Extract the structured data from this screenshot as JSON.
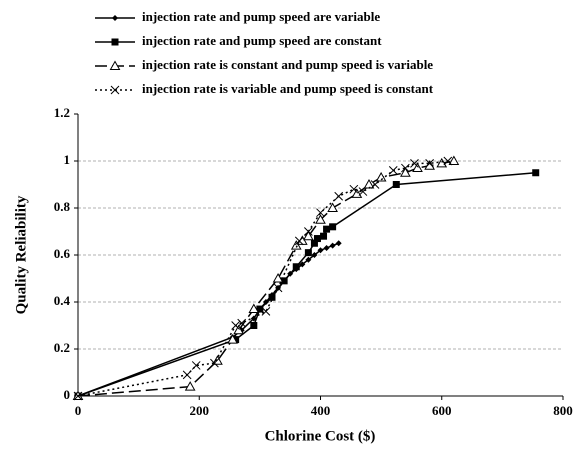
{
  "chart_data": {
    "type": "line",
    "xlabel": "Chlorine Cost ($)",
    "ylabel": "Quality Reliability",
    "xlim": [
      0,
      800
    ],
    "xticks": [
      0,
      200,
      400,
      600,
      800
    ],
    "ylim": [
      0,
      1.2
    ],
    "yticks": [
      0,
      0.2,
      0.4,
      0.6,
      0.8,
      1,
      1.2
    ],
    "grid": true,
    "legend": "top",
    "series": [
      {
        "name": "injection rate and pump speed are variable",
        "color": "#000000",
        "line_style": "solid",
        "marker": "diamond",
        "x": [
          0,
          255,
          270,
          290,
          300,
          310,
          320,
          330,
          340,
          350,
          360,
          370,
          380,
          390,
          400,
          410,
          420,
          430
        ],
        "values": [
          0,
          0.25,
          0.28,
          0.33,
          0.37,
          0.4,
          0.43,
          0.46,
          0.49,
          0.52,
          0.54,
          0.56,
          0.58,
          0.6,
          0.62,
          0.63,
          0.64,
          0.65
        ]
      },
      {
        "name": "injection rate and pump speed are constant",
        "color": "#000000",
        "line_style": "solid",
        "marker": "square",
        "x": [
          0,
          260,
          290,
          300,
          320,
          340,
          360,
          380,
          390,
          395,
          405,
          410,
          420,
          525,
          755
        ],
        "values": [
          0,
          0.24,
          0.3,
          0.37,
          0.42,
          0.49,
          0.55,
          0.61,
          0.65,
          0.67,
          0.68,
          0.71,
          0.72,
          0.9,
          0.95
        ]
      },
      {
        "name": "injection rate is constant and pump speed is variable",
        "color": "#000000",
        "line_style": "longdash",
        "marker": "triangle",
        "x": [
          0,
          185,
          230,
          255,
          265,
          290,
          330,
          360,
          370,
          380,
          400,
          420,
          460,
          480,
          500,
          540,
          560,
          580,
          600,
          620
        ],
        "values": [
          0,
          0.04,
          0.15,
          0.24,
          0.28,
          0.37,
          0.5,
          0.64,
          0.66,
          0.68,
          0.75,
          0.8,
          0.86,
          0.9,
          0.93,
          0.95,
          0.97,
          0.98,
          0.99,
          1.0
        ]
      },
      {
        "name": "injection rate is variable and pump speed is constant",
        "color": "#000000",
        "line_style": "dotted",
        "marker": "x",
        "x": [
          0,
          180,
          195,
          225,
          260,
          270,
          310,
          330,
          365,
          380,
          400,
          430,
          455,
          470,
          490,
          520,
          540,
          555,
          580,
          610
        ],
        "values": [
          0,
          0.09,
          0.13,
          0.14,
          0.3,
          0.31,
          0.36,
          0.46,
          0.66,
          0.7,
          0.78,
          0.85,
          0.88,
          0.87,
          0.9,
          0.96,
          0.97,
          0.99,
          0.99,
          1.0
        ]
      }
    ]
  }
}
